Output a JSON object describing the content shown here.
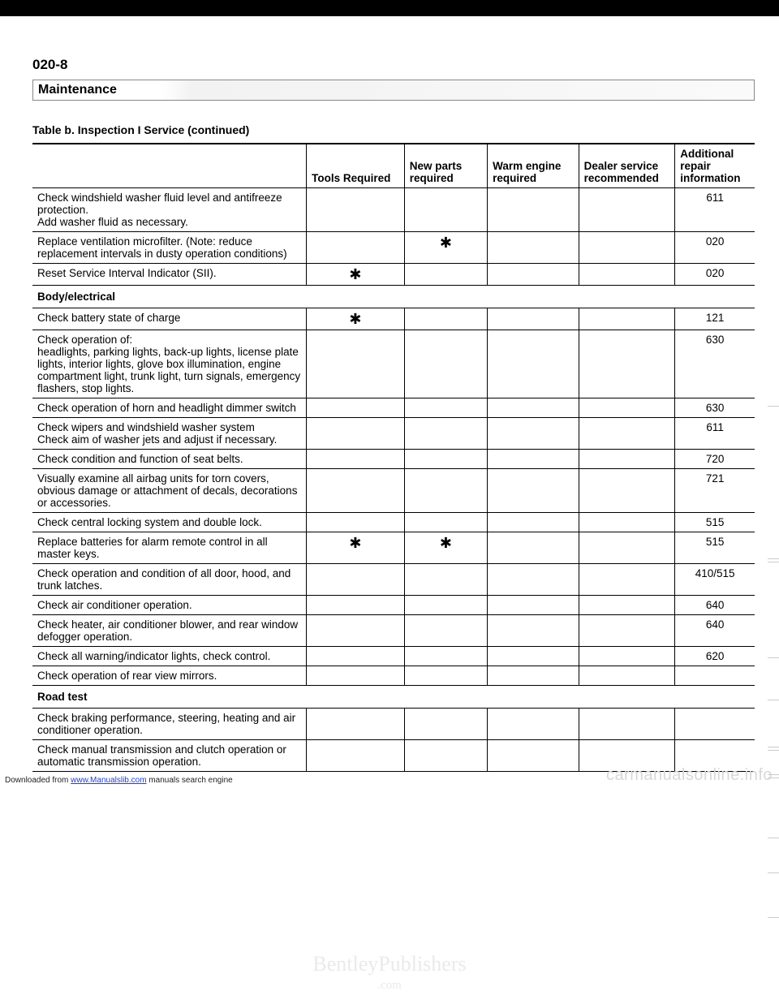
{
  "page_number": "020-8",
  "section_title": "Maintenance",
  "table_caption": "Table b. Inspection I Service (continued)",
  "headers": {
    "col1": "",
    "col2": "Tools Required",
    "col3": "New parts required",
    "col4": "Warm engine required",
    "col5": "Dealer service recommended",
    "col6": "Additional repair information"
  },
  "rows": [
    {
      "type": "data",
      "desc": "Check windshield washer fluid level and antifreeze protection.\nAdd washer fluid as necessary.",
      "tools": "",
      "new": "",
      "warm": "",
      "dealer": "",
      "info": "611"
    },
    {
      "type": "data",
      "desc": "Replace ventilation microfilter. (Note: reduce replacement intervals in dusty operation conditions)",
      "tools": "",
      "new": "✱",
      "warm": "",
      "dealer": "",
      "info": "020"
    },
    {
      "type": "data",
      "desc": "Reset Service Interval Indicator (SII).",
      "tools": "✱",
      "new": "",
      "warm": "",
      "dealer": "",
      "info": "020"
    },
    {
      "type": "section",
      "desc": "Body/electrical"
    },
    {
      "type": "data",
      "desc": "Check battery state of charge",
      "tools": "✱",
      "new": "",
      "warm": "",
      "dealer": "",
      "info": "121"
    },
    {
      "type": "data",
      "desc": "Check operation of:\n headlights, parking lights, back-up lights, license plate lights, interior lights, glove box illumination, engine compartment light, trunk light, turn signals, emergency flashers, stop lights.",
      "tools": "",
      "new": "",
      "warm": "",
      "dealer": "",
      "info": "630"
    },
    {
      "type": "data",
      "desc": "Check operation of horn and headlight dimmer switch",
      "tools": "",
      "new": "",
      "warm": "",
      "dealer": "",
      "info": "630"
    },
    {
      "type": "data",
      "desc": "Check wipers and windshield washer system\nCheck aim of washer jets and adjust if necessary.",
      "tools": "",
      "new": "",
      "warm": "",
      "dealer": "",
      "info": "611"
    },
    {
      "type": "data",
      "desc": "Check condition and function of seat belts.",
      "tools": "",
      "new": "",
      "warm": "",
      "dealer": "",
      "info": "720"
    },
    {
      "type": "data",
      "desc": "Visually examine all airbag units for torn covers, obvious damage or attachment of decals, decorations or accessories.",
      "tools": "",
      "new": "",
      "warm": "",
      "dealer": "",
      "info": "721"
    },
    {
      "type": "data",
      "desc": "Check central locking system and double lock.",
      "tools": "",
      "new": "",
      "warm": "",
      "dealer": "",
      "info": "515"
    },
    {
      "type": "data",
      "desc": "Replace batteries for alarm remote control in all master keys.",
      "tools": "✱",
      "new": "✱",
      "warm": "",
      "dealer": "",
      "info": "515"
    },
    {
      "type": "data",
      "desc": "Check operation and condition of all door, hood, and trunk latches.",
      "tools": "",
      "new": "",
      "warm": "",
      "dealer": "",
      "info": "410/515"
    },
    {
      "type": "data",
      "desc": "Check air conditioner operation.",
      "tools": "",
      "new": "",
      "warm": "",
      "dealer": "",
      "info": "640"
    },
    {
      "type": "data",
      "desc": "Check heater, air conditioner blower, and rear window defogger operation.",
      "tools": "",
      "new": "",
      "warm": "",
      "dealer": "",
      "info": "640"
    },
    {
      "type": "data",
      "desc": "Check all warning/indicator lights, check control.",
      "tools": "",
      "new": "",
      "warm": "",
      "dealer": "",
      "info": "620"
    },
    {
      "type": "data",
      "desc": "Check operation of rear view mirrors.",
      "tools": "",
      "new": "",
      "warm": "",
      "dealer": "",
      "info": ""
    },
    {
      "type": "section",
      "desc": "Road test"
    },
    {
      "type": "data",
      "desc": "Check braking performance, steering, heating and air conditioner operation.",
      "tools": "",
      "new": "",
      "warm": "",
      "dealer": "",
      "info": ""
    },
    {
      "type": "data",
      "desc": "Check manual transmission and clutch operation or automatic transmission operation.",
      "tools": "",
      "new": "",
      "warm": "",
      "dealer": "",
      "info": "",
      "last": true
    }
  ],
  "watermark_top": "BentleyPublishers",
  "watermark_sub": ".com",
  "footer_left_pre": "Downloaded from ",
  "footer_left_link": "www.Manualslib.com",
  "footer_left_post": " manuals search engine",
  "footer_right": "carmanualsonline.info"
}
